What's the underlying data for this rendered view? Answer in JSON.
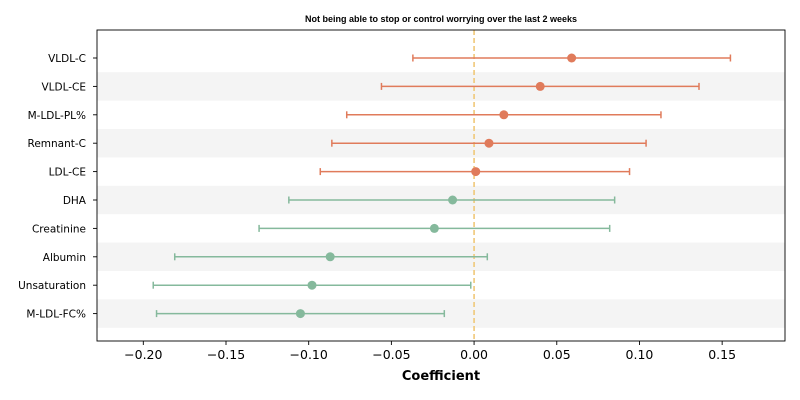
{
  "chart_data": {
    "type": "forest",
    "title": "Not being able to stop or control worrying over the last 2 weeks",
    "xlabel": "Coefficient",
    "xlim": [
      -0.228,
      0.188
    ],
    "xticks": [
      -0.2,
      -0.15,
      -0.1,
      -0.05,
      0.0,
      0.05,
      0.1,
      0.15
    ],
    "xtick_labels": [
      "−0.20",
      "−0.15",
      "−0.10",
      "−0.05",
      "0.00",
      "0.05",
      "0.10",
      "0.15"
    ],
    "reference_line": 0.0,
    "grid": false,
    "alternating_row_shading": true,
    "colors": {
      "positive": "#e07b5b",
      "negative": "#85b99c",
      "reference": "#f0c878",
      "shade": "#f4f4f4"
    },
    "rows": [
      {
        "label": "VLDL-C",
        "estimate": 0.059,
        "lower": -0.037,
        "upper": 0.155
      },
      {
        "label": "VLDL-CE",
        "estimate": 0.04,
        "lower": -0.056,
        "upper": 0.136
      },
      {
        "label": "M-LDL-PL%",
        "estimate": 0.018,
        "lower": -0.077,
        "upper": 0.113
      },
      {
        "label": "Remnant-C",
        "estimate": 0.009,
        "lower": -0.086,
        "upper": 0.104
      },
      {
        "label": "LDL-CE",
        "estimate": 0.001,
        "lower": -0.093,
        "upper": 0.094
      },
      {
        "label": "DHA",
        "estimate": -0.013,
        "lower": -0.112,
        "upper": 0.085
      },
      {
        "label": "Creatinine",
        "estimate": -0.024,
        "lower": -0.13,
        "upper": 0.082
      },
      {
        "label": "Albumin",
        "estimate": -0.087,
        "lower": -0.181,
        "upper": 0.008
      },
      {
        "label": "Unsaturation",
        "estimate": -0.098,
        "lower": -0.194,
        "upper": -0.002
      },
      {
        "label": "M-LDL-FC%",
        "estimate": -0.105,
        "lower": -0.192,
        "upper": -0.018
      }
    ]
  }
}
